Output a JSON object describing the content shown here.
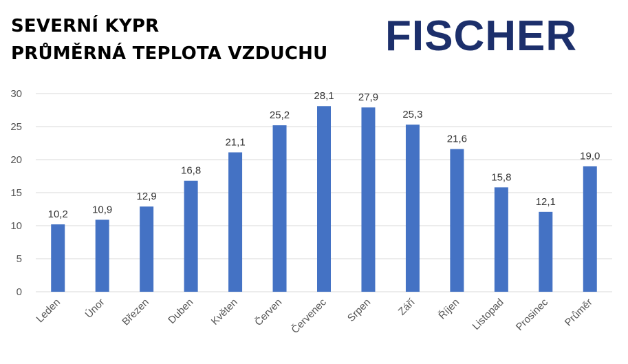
{
  "header": {
    "title_line1": "SEVERNÍ KYPR",
    "title_line2": "PRŮMĚRNÁ TEPLOTA VZDUCHU",
    "logo_text": "FISCHER"
  },
  "colors": {
    "bar": "#4472c4",
    "logo": "#1c2f6b",
    "grid": "#d9d9d9"
  },
  "chart_data": {
    "type": "bar",
    "title": "PRŮMĚRNÁ TEPLOTA VZDUCHU",
    "categories": [
      "Leden",
      "Únor",
      "Březen",
      "Duben",
      "Květen",
      "Červen",
      "Červenec",
      "Srpen",
      "Září",
      "Říjen",
      "Listopad",
      "Prosinec",
      "Průměr"
    ],
    "values": [
      10.2,
      10.9,
      12.9,
      16.8,
      21.1,
      25.2,
      28.1,
      27.9,
      25.3,
      21.6,
      15.8,
      12.1,
      19.0
    ],
    "value_labels": [
      "10,2",
      "10,9",
      "12,9",
      "16,8",
      "21,1",
      "25,2",
      "28,1",
      "27,9",
      "25,3",
      "21,6",
      "15,8",
      "12,1",
      "19,0"
    ],
    "ylim": [
      0,
      30
    ],
    "yticks": [
      "0",
      "5",
      "10",
      "15",
      "20",
      "25",
      "30"
    ],
    "grid": true,
    "legend": "none",
    "xlabel": "",
    "ylabel": ""
  }
}
